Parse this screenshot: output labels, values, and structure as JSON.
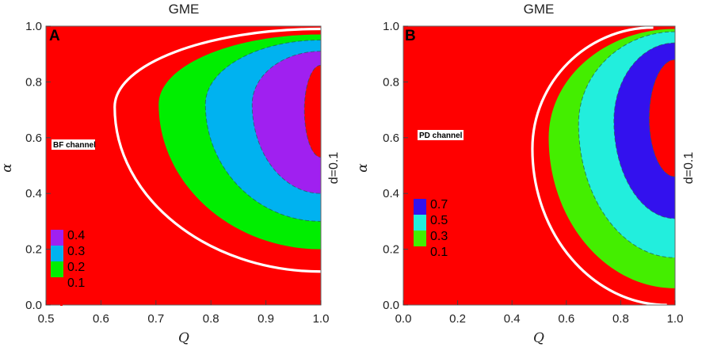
{
  "chart_data": [
    {
      "type": "heatmap",
      "panel": "A",
      "title": "GME",
      "xlabel": "Q",
      "ylabel": "α",
      "xlim": [
        0.5,
        1.0
      ],
      "ylim": [
        0.0,
        1.0
      ],
      "xticks": [
        "0.5",
        "0.6",
        "0.7",
        "0.8",
        "0.9",
        "1.0"
      ],
      "yticks": [
        "0.0",
        "0.2",
        "0.4",
        "0.6",
        "0.8",
        "1.0"
      ],
      "side_label": "d=0.1",
      "channel_label": "BF channel",
      "legend": [
        {
          "label": "0.4",
          "color": "#a020f0"
        },
        {
          "label": "0.3",
          "color": "#00b2f0"
        },
        {
          "label": "0.2",
          "color": "#00ee00"
        },
        {
          "label": "0.1",
          "color": "#ff0000"
        }
      ],
      "contours": [
        {
          "boundary": "white-thick",
          "vertex": [
            0.625,
            0.71
          ],
          "top": [
            1.0,
            0.99
          ],
          "bottom": [
            1.0,
            0.12
          ]
        },
        {
          "fill": "#00ee00",
          "vertex": [
            0.705,
            0.72
          ],
          "top": [
            1.0,
            0.97
          ],
          "bottom": [
            1.0,
            0.2
          ]
        },
        {
          "fill": "#00b2f0",
          "vertex": [
            0.79,
            0.72
          ],
          "top": [
            1.0,
            0.95
          ],
          "bottom": [
            1.0,
            0.3
          ]
        },
        {
          "fill": "#a020f0",
          "vertex": [
            0.875,
            0.72
          ],
          "top": [
            1.0,
            0.91
          ],
          "bottom": [
            1.0,
            0.4
          ]
        },
        {
          "fill": "#ff0000",
          "vertex": [
            0.97,
            0.7
          ],
          "top": [
            1.0,
            0.86
          ],
          "bottom": [
            1.0,
            0.53
          ]
        }
      ]
    },
    {
      "type": "heatmap",
      "panel": "B",
      "title": "GME",
      "xlabel": "Q",
      "ylabel": "α",
      "xlim": [
        0.0,
        1.0
      ],
      "ylim": [
        0.0,
        1.0
      ],
      "xticks": [
        "0.0",
        "0.2",
        "0.4",
        "0.6",
        "0.8",
        "1.0"
      ],
      "yticks": [
        "0.0",
        "0.2",
        "0.4",
        "0.6",
        "0.8",
        "1.0"
      ],
      "side_label": "d=0.1",
      "channel_label": "PD channel",
      "legend": [
        {
          "label": "0.7",
          "color": "#3311ee"
        },
        {
          "label": "0.5",
          "color": "#22eedd"
        },
        {
          "label": "0.3",
          "color": "#44ee00"
        },
        {
          "label": "0.1",
          "color": "#ff0000"
        }
      ],
      "contours": [
        {
          "boundary": "white-thick",
          "vertex": [
            0.475,
            0.56
          ],
          "top": [
            0.92,
            0.995
          ],
          "bottom": [
            0.97,
            0.0
          ]
        },
        {
          "fill": "#44ee00",
          "vertex": [
            0.535,
            0.6
          ],
          "top": [
            1.0,
            0.99
          ],
          "bottom": [
            1.0,
            0.06
          ]
        },
        {
          "fill": "#22eedd",
          "vertex": [
            0.645,
            0.65
          ],
          "top": [
            1.0,
            0.98
          ],
          "bottom": [
            1.0,
            0.17
          ]
        },
        {
          "fill": "#3311ee",
          "vertex": [
            0.775,
            0.66
          ],
          "top": [
            1.0,
            0.94
          ],
          "bottom": [
            1.0,
            0.31
          ]
        },
        {
          "fill": "#ff0000",
          "vertex": [
            0.905,
            0.67
          ],
          "top": [
            1.0,
            0.88
          ],
          "bottom": [
            1.0,
            0.46
          ]
        }
      ]
    }
  ]
}
